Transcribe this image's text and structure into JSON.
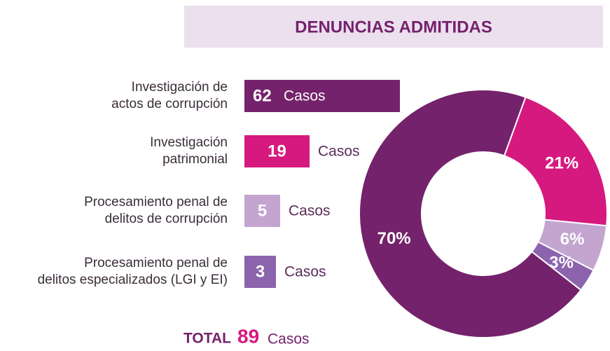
{
  "header": {
    "title": "DENUNCIAS ADMITIDAS"
  },
  "chart_data": [
    {
      "type": "bar",
      "categories": [
        [
          "Investigación de",
          "actos de corrupción"
        ],
        [
          "Investigación",
          "patrimonial"
        ],
        [
          "Procesamiento penal de",
          "delitos de corrupción"
        ],
        [
          "Procesamiento penal de",
          "delitos especializados (LGI y EI)"
        ]
      ],
      "values": [
        62,
        19,
        5,
        3
      ],
      "colors": [
        "#74226c",
        "#d6197f",
        "#c3a5d0",
        "#8b64ad"
      ],
      "unit": "Casos"
    },
    {
      "type": "pie",
      "values": [
        70,
        21,
        6,
        3
      ],
      "value_labels": [
        "70%",
        "21%",
        "6%",
        "3%"
      ],
      "colors": [
        "#74226c",
        "#d6197f",
        "#c3a5d0",
        "#8b64ad"
      ],
      "donut": true
    }
  ],
  "total": {
    "label": "TOTAL",
    "value": 89,
    "unit": "Casos"
  }
}
